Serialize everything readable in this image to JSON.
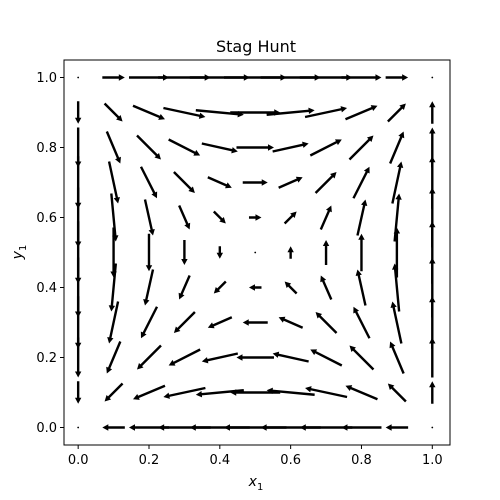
{
  "chart_data": {
    "type": "quiver",
    "title": "Stag Hunt",
    "xlabel": {
      "base": "x",
      "sub": "1"
    },
    "ylabel": {
      "base": "y",
      "sub": "1"
    },
    "xlim": [
      -0.04,
      1.05
    ],
    "ylim": [
      -0.05,
      1.05
    ],
    "xticks": [
      0.0,
      0.2,
      0.4,
      0.6,
      0.8,
      1.0
    ],
    "xtick_labels": [
      "0.0",
      "0.2",
      "0.4",
      "0.6",
      "0.8",
      "1.0"
    ],
    "yticks": [
      0.0,
      0.2,
      0.4,
      0.6,
      0.8,
      1.0
    ],
    "ytick_labels": [
      "0.0",
      "0.2",
      "0.4",
      "0.6",
      "0.8",
      "1.0"
    ],
    "grid": false,
    "grid_values": [
      0.0,
      0.1,
      0.2,
      0.3,
      0.4,
      0.5,
      0.6,
      0.7,
      0.8,
      0.9,
      1.0
    ],
    "vector_field": "dx = x(1-x)(2y-1), dy = y(1-y)(2x-1)",
    "arrow_color": "#000000"
  }
}
